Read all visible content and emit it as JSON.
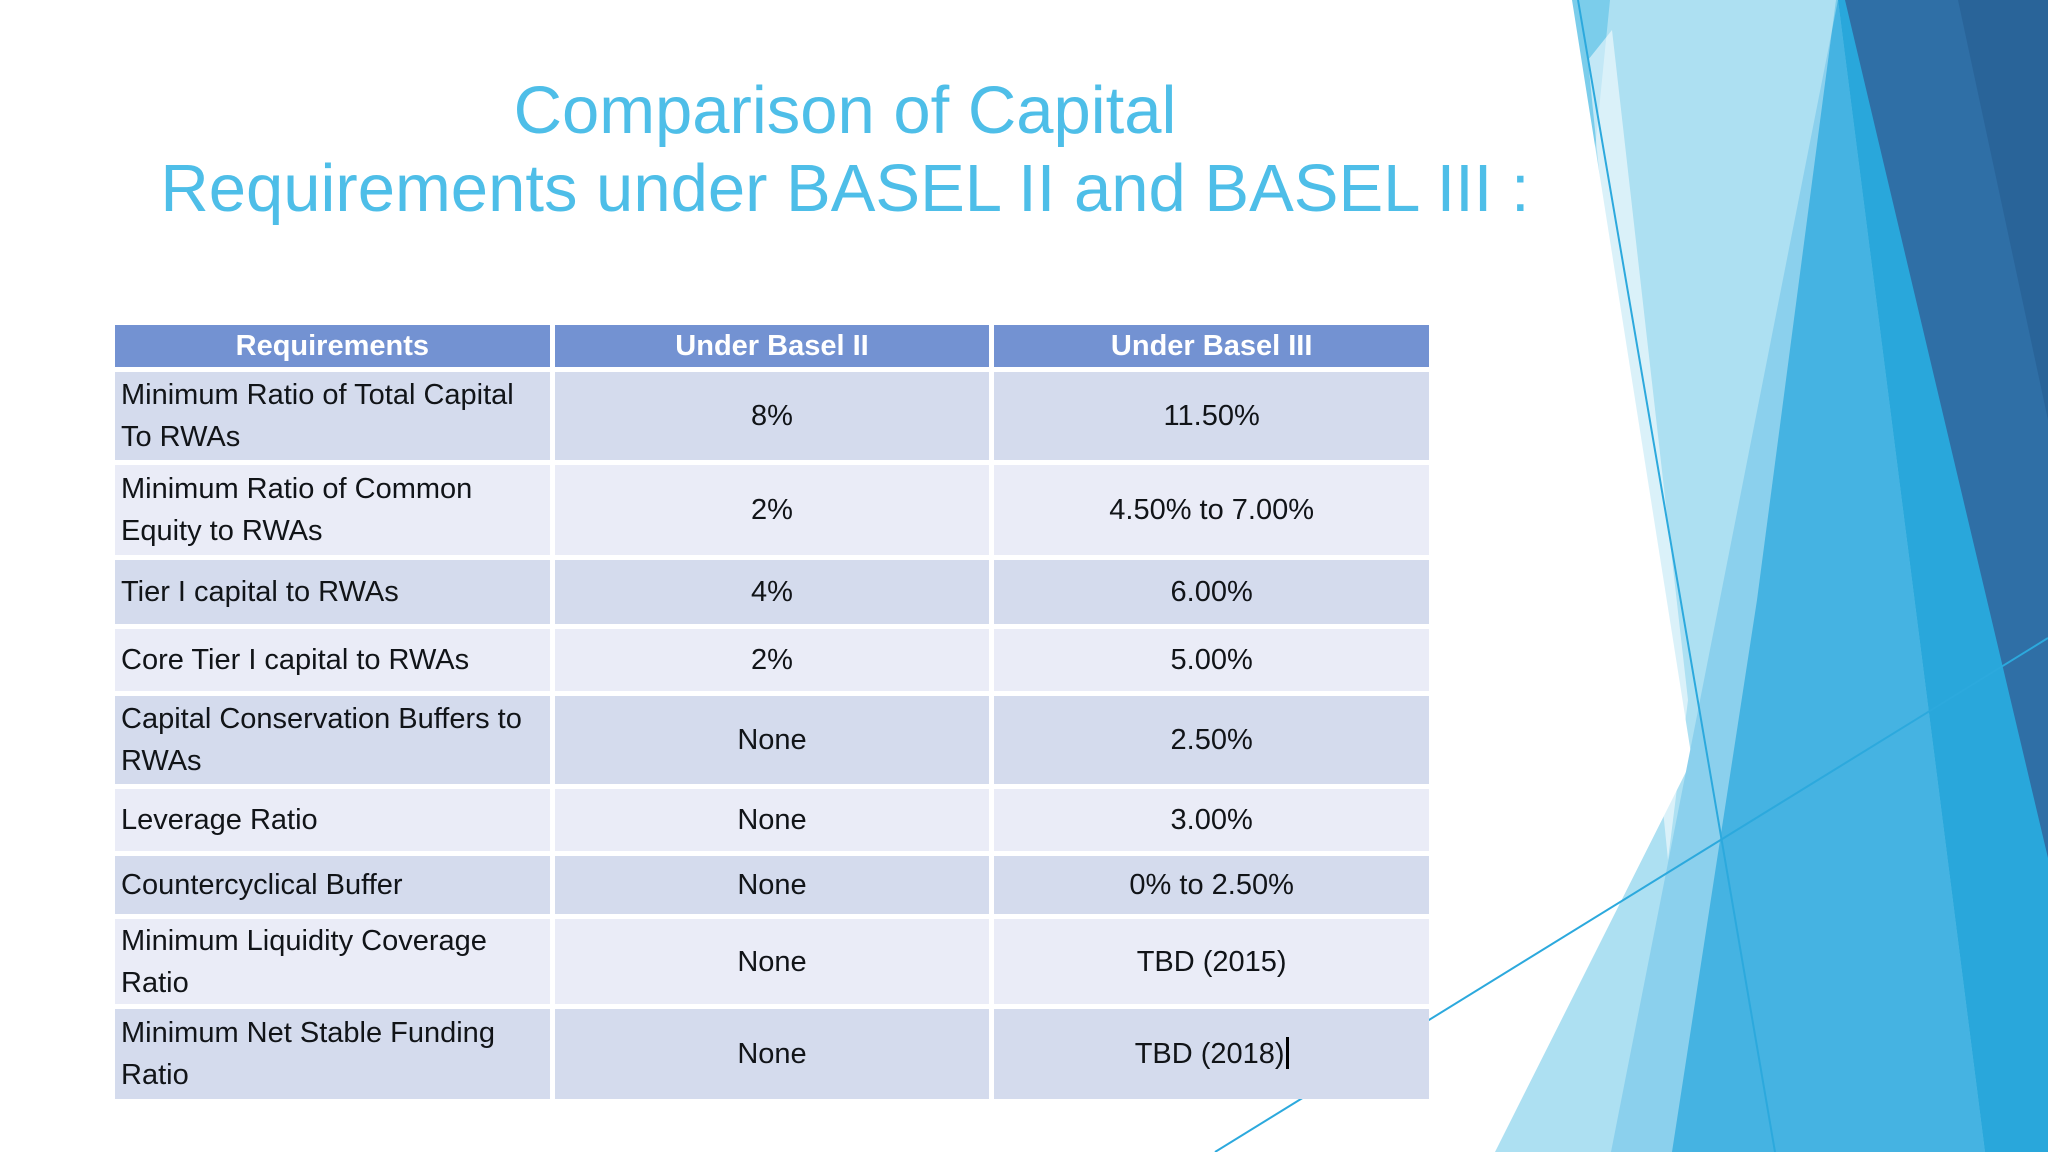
{
  "slide": {
    "title": {
      "line1": "Comparison of Capital",
      "line2": "Requirements under BASEL II and BASEL III :"
    }
  },
  "colors": {
    "title_text": "#4EBEE8",
    "table_header_bg": "#7392D2",
    "table_header_text": "#FFFFFF",
    "row_shaded_bg": "#D4DBED",
    "row_plain_bg": "#EAECF7",
    "cell_text": "#111418",
    "decor_light_blue": "#7BCDEB",
    "decor_medium_blue": "#45B3E2",
    "decor_deep_cyan": "#29A7DB",
    "decor_dark_blue": "#2F6FA6",
    "decor_line_blue": "#2CA9DD"
  },
  "table": {
    "headers": [
      "Requirements",
      "Under Basel II",
      "Under Basel III"
    ],
    "rows": [
      {
        "requirement": "Minimum Ratio of Total Capital To RWAs",
        "under_basel_2": "8%",
        "under_basel_3": "11.50%"
      },
      {
        "requirement": "Minimum Ratio of Common Equity to RWAs",
        "under_basel_2": "2%",
        "under_basel_3": "4.50% to 7.00%"
      },
      {
        "requirement": "Tier I capital to RWAs",
        "under_basel_2": "4%",
        "under_basel_3": "6.00%"
      },
      {
        "requirement": "Core Tier I capital to RWAs",
        "under_basel_2": "2%",
        "under_basel_3": "5.00%"
      },
      {
        "requirement": "Capital Conservation Buffers to RWAs",
        "under_basel_2": "None",
        "under_basel_3": "2.50%"
      },
      {
        "requirement": "Leverage Ratio",
        "under_basel_2": "None",
        "under_basel_3": "3.00%"
      },
      {
        "requirement": "Countercyclical Buffer",
        "under_basel_2": "None",
        "under_basel_3": "0% to 2.50%"
      },
      {
        "requirement": "Minimum Liquidity Coverage Ratio",
        "under_basel_2": "None",
        "under_basel_3": "TBD (2015)"
      },
      {
        "requirement": "Minimum Net Stable Funding Ratio",
        "under_basel_2": "None",
        "under_basel_3": "TBD (2018)",
        "editing_cursor": true
      }
    ]
  }
}
